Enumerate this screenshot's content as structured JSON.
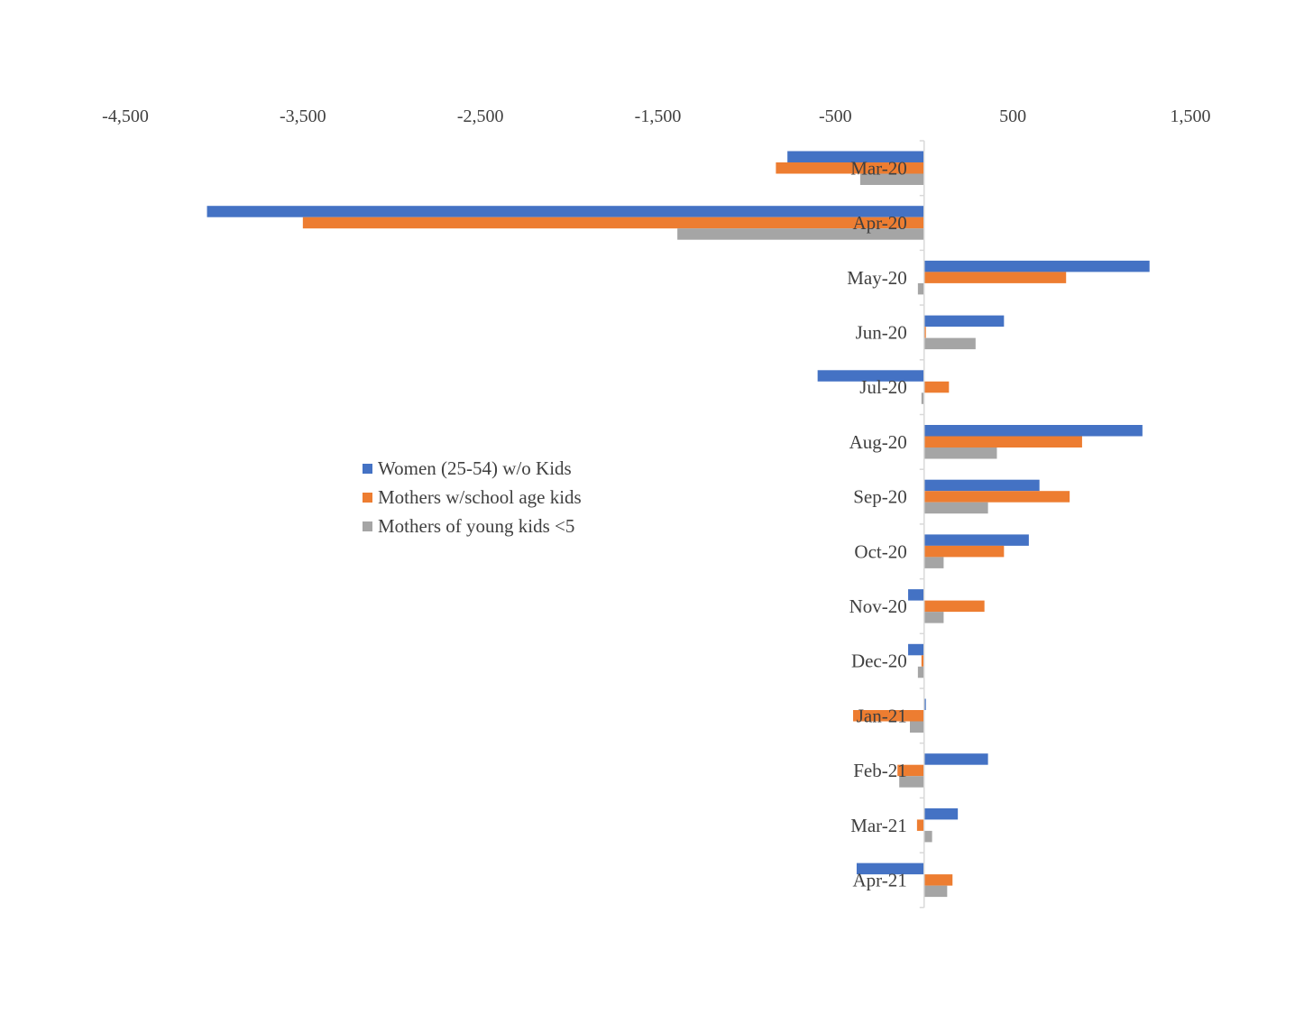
{
  "chart_data": {
    "type": "bar",
    "orientation": "horizontal",
    "title": "",
    "xlabel": "",
    "ylabel": "",
    "xlim": [
      -4500,
      1500
    ],
    "x_ticks": [
      -4500,
      -3500,
      -2500,
      -1500,
      -500,
      500,
      1500
    ],
    "x_tick_labels": [
      "-4,500",
      "-3,500",
      "-2,500",
      "-1,500",
      "-500",
      "500",
      "1,500"
    ],
    "x_axis_position": "top",
    "grid": false,
    "legend_position": "center-left",
    "categories": [
      "Mar-20",
      "Apr-20",
      "May-20",
      "Jun-20",
      "Jul-20",
      "Aug-20",
      "Sep-20",
      "Oct-20",
      "Nov-20",
      "Dec-20",
      "Jan-21",
      "Feb-21",
      "Mar-21",
      "Apr-21"
    ],
    "series": [
      {
        "name": "Women (25-54) w/o Kids",
        "color": "#4472c4",
        "values": [
          -770,
          -4040,
          1270,
          450,
          -600,
          1230,
          650,
          590,
          -90,
          -90,
          10,
          360,
          190,
          -380
        ]
      },
      {
        "name": "Mothers w/school age kids",
        "color": "#ed7d31",
        "values": [
          -835,
          -3500,
          800,
          10,
          140,
          890,
          820,
          450,
          340,
          -15,
          -400,
          -150,
          -40,
          160
        ]
      },
      {
        "name": "Mothers of young kids <5",
        "color": "#a5a5a5",
        "values": [
          -360,
          -1390,
          -35,
          290,
          -15,
          410,
          360,
          110,
          110,
          -35,
          -80,
          -140,
          45,
          130
        ]
      }
    ]
  }
}
